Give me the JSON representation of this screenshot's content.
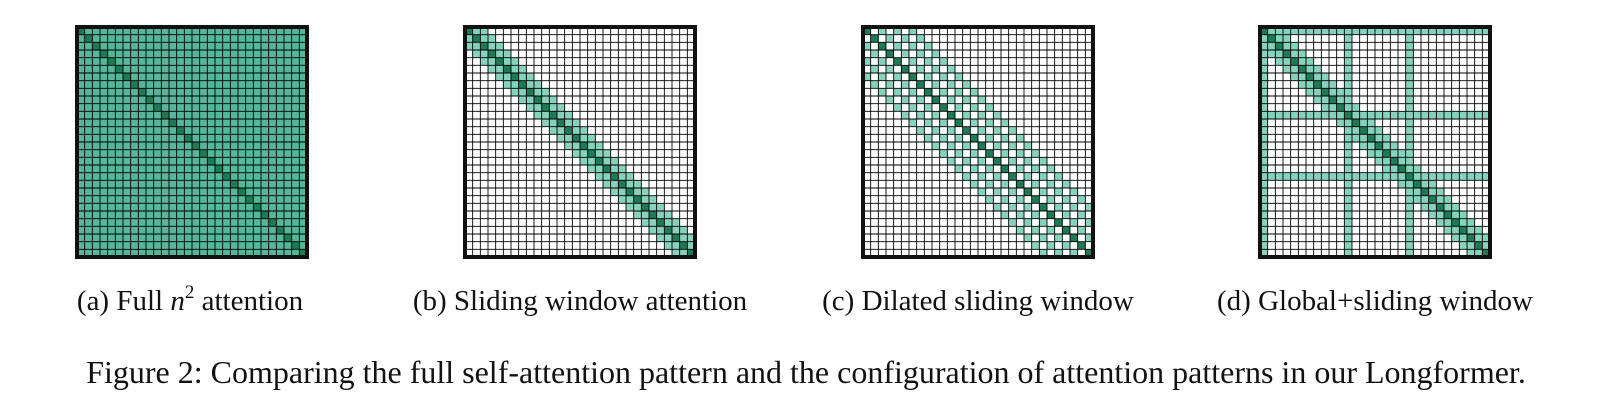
{
  "colors": {
    "full": "#56b69a",
    "band": "#86d2bd",
    "diagonal": "#1e7a55",
    "empty": "#ffffff",
    "gridline": "#000000",
    "border": "#111111"
  },
  "grid_cells": 30,
  "panels": [
    {
      "id": "a",
      "pattern": "full",
      "caption_prefix": "(a) Full ",
      "caption_math": "n",
      "caption_sup": "2",
      "caption_suffix": " attention"
    },
    {
      "id": "b",
      "pattern": "sliding",
      "window": 2,
      "caption": "(b) Sliding window attention"
    },
    {
      "id": "c",
      "pattern": "dilated",
      "window": 6,
      "dilation": 2,
      "caption": "(c) Dilated sliding window"
    },
    {
      "id": "d",
      "pattern": "global",
      "window": 2,
      "global_tokens": [
        0,
        11,
        19
      ],
      "caption": "(d) Global+sliding window"
    }
  ],
  "figure_caption": "Figure 2: Comparing the full self-attention pattern and the configuration of attention patterns in our Longformer."
}
